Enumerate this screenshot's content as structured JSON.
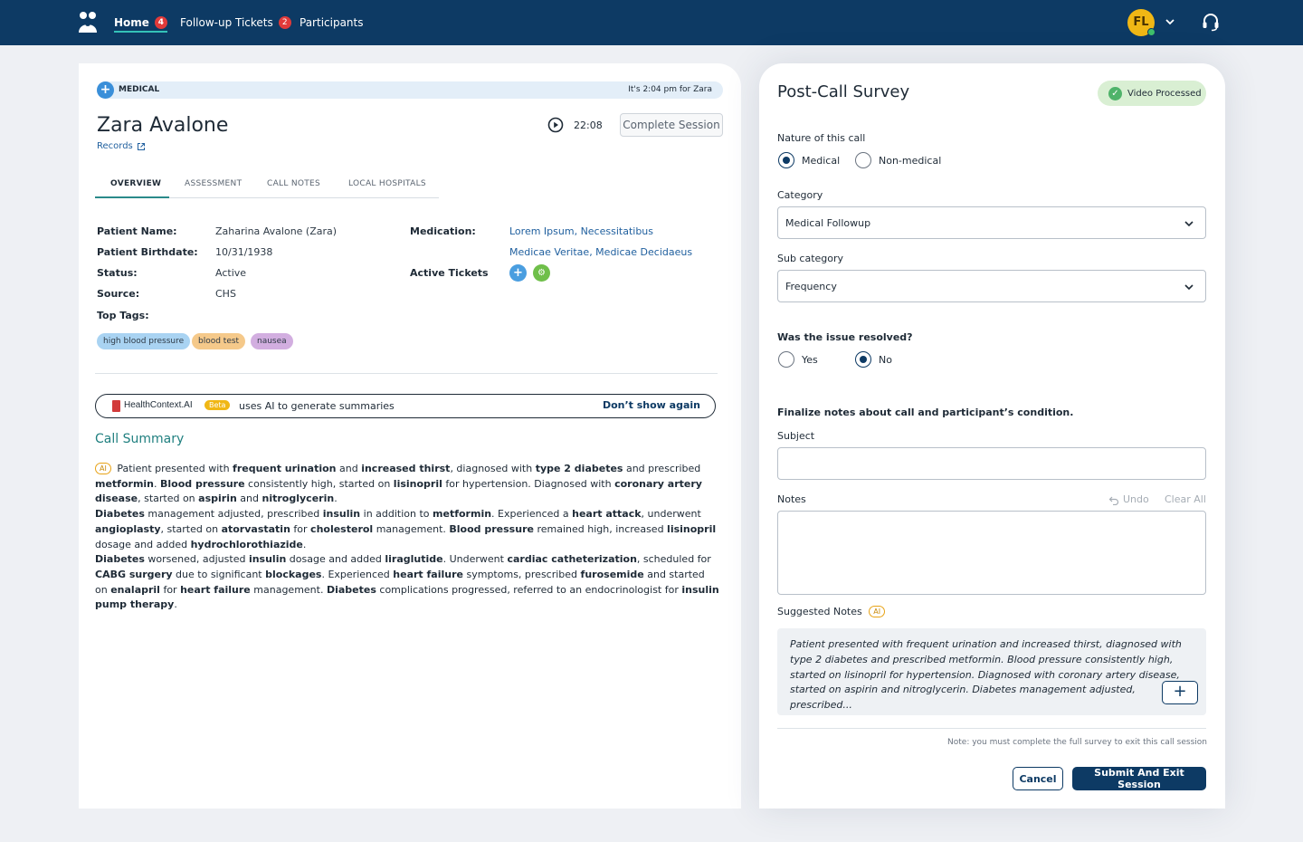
{
  "nav": {
    "home_label": "Home",
    "home_count": "4",
    "followup_label": "Follow-up Tickets",
    "followup_count": "2",
    "participants_label": "Participants",
    "avatar_initials": "FL"
  },
  "banner": {
    "category": "MEDICAL",
    "local_time": "It's 2:04 pm for Zara"
  },
  "patient": {
    "display_name": "Zara Avalone",
    "records_link": "Records",
    "timer": "22:08",
    "complete_label": "Complete Session"
  },
  "tabs": [
    "OVERVIEW",
    "ASSESSMENT",
    "CALL NOTES",
    "LOCAL HOSPITALS"
  ],
  "overview": {
    "patient_name_label": "Patient Name:",
    "patient_name": "Zaharina Avalone (Zara)",
    "birthdate_label": "Patient Birthdate:",
    "birthdate": "10/31/1938",
    "status_label": "Status:",
    "status": "Active",
    "source_label": "Source:",
    "source": "CHS",
    "tags_label": "Top Tags:",
    "tags": [
      "high blood pressure",
      "blood test",
      "nausea"
    ],
    "medication_label": "Medication:",
    "medication_line1": "Lorem Ipsum, Necessitatibus",
    "medication_line2": "Medicae Veritae, Medicae Decidaeus",
    "tickets_label": "Active Tickets"
  },
  "ai_bar": {
    "brand": "HealthContext.AI",
    "beta": "Beta",
    "uses": "uses AI to generate summaries",
    "dismiss": "Don’t show again"
  },
  "summary": {
    "title": "Call Summary",
    "ai_chip": "AI"
  },
  "survey": {
    "title": "Post-Call Survey",
    "video_status": "Video Processed",
    "nature_label": "Nature of this call",
    "nature_opt1": "Medical",
    "nature_opt2": "Non-medical",
    "category_label": "Category",
    "category_value": "Medical Followup",
    "subcategory_label": "Sub category",
    "subcategory_value": "Frequency",
    "resolved_label": "Was the issue resolved?",
    "resolved_opt1": "Yes",
    "resolved_opt2": "No",
    "finalize_label": "Finalize notes about call and participant’s condition.",
    "subject_label": "Subject",
    "notes_label": "Notes",
    "undo_label": "Undo",
    "clear_label": "Clear All",
    "suggested_label": "Suggested Notes",
    "suggested_ai": "AI",
    "suggested_text": "Patient presented with frequent urination and increased thirst, diagnosed with type 2 diabetes and prescribed metformin. Blood pressure consistently high, started on lisinopril for hypertension. Diagnosed with coronary artery disease, started on aspirin and nitroglycerin. Diabetes management adjusted, prescribed...",
    "footnote": "Note: you must complete the full survey to exit this call session",
    "cancel_label": "Cancel",
    "submit_label": "Submit And Exit Session"
  },
  "colors": {
    "navbar": "#0d3a64",
    "accent_teal": "#1f7f7f",
    "badge_red": "#e03a3a",
    "avatar_yellow": "#f0b715"
  }
}
